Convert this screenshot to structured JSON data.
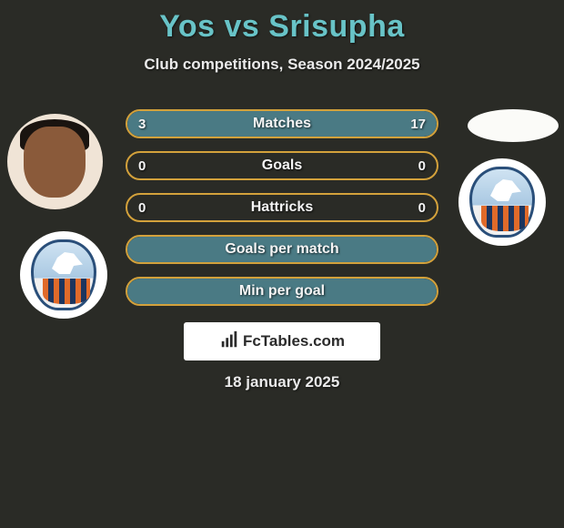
{
  "header": {
    "title": "Yos vs Srisupha",
    "subtitle": "Club competitions, Season 2024/2025",
    "title_color": "#68c3c7"
  },
  "players": {
    "left_name": "Yos",
    "right_name": "Srisupha"
  },
  "rows": [
    {
      "label": "Matches",
      "left": "3",
      "right": "17",
      "left_pct": 15,
      "right_pct": 85,
      "show_values": true
    },
    {
      "label": "Goals",
      "left": "0",
      "right": "0",
      "left_pct": 0,
      "right_pct": 0,
      "show_values": true
    },
    {
      "label": "Hattricks",
      "left": "0",
      "right": "0",
      "left_pct": 0,
      "right_pct": 0,
      "show_values": true
    },
    {
      "label": "Goals per match",
      "left": "",
      "right": "",
      "left_pct": 100,
      "right_pct": 0,
      "show_values": false
    },
    {
      "label": "Min per goal",
      "left": "",
      "right": "",
      "left_pct": 100,
      "right_pct": 0,
      "show_values": false
    }
  ],
  "styling": {
    "pill_border_color": "#d3a13b",
    "fill_color": "#4a7a84",
    "background_color": "#2a2b26",
    "text_color": "#f4f4f4"
  },
  "watermark": {
    "text": "FcTables.com"
  },
  "date": "18 january 2025"
}
